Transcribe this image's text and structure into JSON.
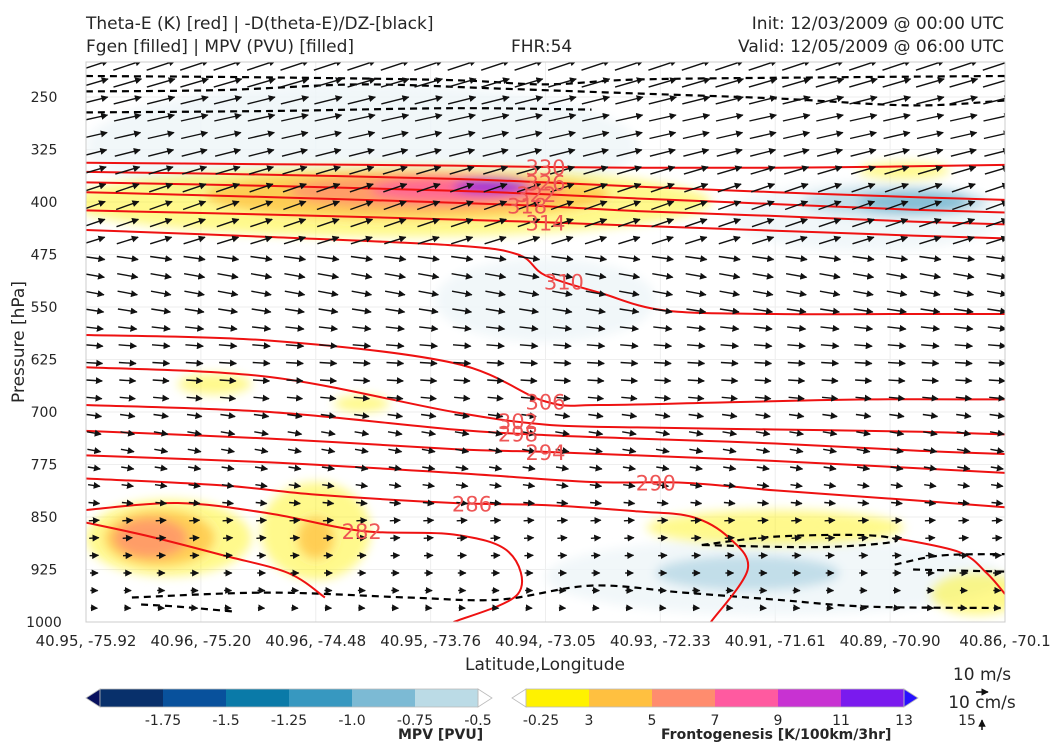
{
  "header": {
    "title_line1": "Theta-E (K) [red] | -D(theta-E)/DZ-[black]",
    "title_line2": "Fgen [filled] | MPV (PVU) [filled]",
    "fhr": "FHR:54",
    "init": "Init: 12/03/2009 @ 00:00 UTC",
    "valid": "Valid: 12/05/2009 @ 06:00 UTC"
  },
  "chart_data": {
    "type": "cross-section",
    "xlabel": "Latitude,Longitude",
    "ylabel": "Pressure [hPa]",
    "ylim": [
      1000,
      200
    ],
    "yticks": [
      250,
      325,
      400,
      475,
      550,
      625,
      700,
      775,
      850,
      925,
      1000
    ],
    "xtick_labels": [
      "40.95, -75.92",
      "40.96, -75.20",
      "40.96, -74.48",
      "40.95, -73.76",
      "40.94, -73.05",
      "40.93, -72.33",
      "40.91, -71.61",
      "40.89, -70.90",
      "40.86, -70.1"
    ],
    "theta_e_contours": [
      {
        "label": "330",
        "points": [
          [
            0.0,
            344
          ],
          [
            0.2,
            346
          ],
          [
            0.4,
            348
          ],
          [
            0.5,
            350
          ],
          [
            0.6,
            351
          ],
          [
            0.75,
            351
          ],
          [
            0.9,
            349
          ],
          [
            1.0,
            347
          ]
        ]
      },
      {
        "label": "326",
        "points": [
          [
            0.0,
            357
          ],
          [
            0.2,
            361
          ],
          [
            0.4,
            367
          ],
          [
            0.5,
            372
          ],
          [
            0.6,
            378
          ],
          [
            0.75,
            386
          ],
          [
            0.9,
            393
          ],
          [
            1.0,
            397
          ]
        ]
      },
      {
        "label": "322",
        "points": [
          [
            0.0,
            372
          ],
          [
            0.2,
            377
          ],
          [
            0.4,
            384
          ],
          [
            0.5,
            389
          ],
          [
            0.6,
            395
          ],
          [
            0.75,
            403
          ],
          [
            0.9,
            411
          ],
          [
            1.0,
            415
          ]
        ]
      },
      {
        "label": "318",
        "points": [
          [
            0.0,
            386
          ],
          [
            0.2,
            393
          ],
          [
            0.4,
            401
          ],
          [
            0.5,
            406
          ],
          [
            0.6,
            413
          ],
          [
            0.75,
            420
          ],
          [
            0.9,
            428
          ],
          [
            1.0,
            432
          ]
        ]
      },
      {
        "label": "314",
        "points": [
          [
            0.0,
            412
          ],
          [
            0.2,
            418
          ],
          [
            0.4,
            425
          ],
          [
            0.5,
            429
          ],
          [
            0.6,
            434
          ],
          [
            0.75,
            441
          ],
          [
            0.9,
            448
          ],
          [
            1.0,
            452
          ]
        ]
      },
      {
        "label": "310",
        "points": [
          [
            0.0,
            440
          ],
          [
            0.2,
            450
          ],
          [
            0.4,
            462
          ],
          [
            0.47,
            475
          ],
          [
            0.5,
            505
          ],
          [
            0.56,
            530
          ],
          [
            0.63,
            555
          ],
          [
            0.75,
            560
          ],
          [
            0.9,
            560
          ],
          [
            1.0,
            560
          ]
        ]
      },
      {
        "label": "306",
        "points": [
          [
            0.0,
            590
          ],
          [
            0.2,
            598
          ],
          [
            0.4,
            630
          ],
          [
            0.5,
            685
          ],
          [
            0.56,
            690
          ],
          [
            0.7,
            686
          ],
          [
            0.85,
            682
          ],
          [
            1.0,
            682
          ]
        ]
      },
      {
        "label": "302",
        "points": [
          [
            0.0,
            636
          ],
          [
            0.2,
            650
          ],
          [
            0.4,
            700
          ],
          [
            0.5,
            718
          ],
          [
            0.6,
            722
          ],
          [
            0.75,
            725
          ],
          [
            0.9,
            728
          ],
          [
            1.0,
            732
          ]
        ]
      },
      {
        "label": "298",
        "points": [
          [
            0.0,
            690
          ],
          [
            0.2,
            700
          ],
          [
            0.4,
            725
          ],
          [
            0.5,
            733
          ],
          [
            0.6,
            738
          ],
          [
            0.75,
            745
          ],
          [
            0.9,
            755
          ],
          [
            1.0,
            760
          ]
        ]
      },
      {
        "label": "294",
        "points": [
          [
            0.0,
            727
          ],
          [
            0.2,
            738
          ],
          [
            0.4,
            753
          ],
          [
            0.5,
            757
          ],
          [
            0.6,
            762
          ],
          [
            0.75,
            770
          ],
          [
            0.9,
            780
          ],
          [
            1.0,
            787
          ]
        ]
      },
      {
        "label": "290",
        "points": [
          [
            0.0,
            762
          ],
          [
            0.2,
            772
          ],
          [
            0.4,
            787
          ],
          [
            0.55,
            800
          ],
          [
            0.65,
            801
          ],
          [
            0.75,
            812
          ],
          [
            0.9,
            826
          ],
          [
            1.0,
            836
          ]
        ]
      },
      {
        "label": "286",
        "points": [
          [
            0.0,
            795
          ],
          [
            0.15,
            805
          ],
          [
            0.25,
            818
          ],
          [
            0.4,
            830
          ],
          [
            0.5,
            833
          ],
          [
            0.6,
            842
          ],
          [
            0.66,
            850
          ],
          [
            0.7,
            880
          ],
          [
            0.72,
            925
          ],
          [
            0.68,
            1000
          ]
        ]
      },
      {
        "label": "282",
        "points": [
          [
            0.0,
            840
          ],
          [
            0.1,
            830
          ],
          [
            0.2,
            845
          ],
          [
            0.3,
            870
          ],
          [
            0.4,
            875
          ],
          [
            0.46,
            900
          ],
          [
            0.47,
            960
          ],
          [
            0.4,
            1000
          ]
        ]
      },
      {
        "label": "",
        "points": [
          [
            0.0,
            858
          ],
          [
            0.07,
            878
          ],
          [
            0.15,
            905
          ],
          [
            0.22,
            930
          ],
          [
            0.26,
            965
          ]
        ]
      },
      {
        "label": "",
        "points": [
          [
            0.88,
            880
          ],
          [
            0.95,
            900
          ],
          [
            0.98,
            930
          ],
          [
            1.0,
            960
          ]
        ]
      }
    ],
    "stability_contours": [
      {
        "points": [
          [
            0.0,
            220
          ],
          [
            0.2,
            222
          ],
          [
            0.4,
            226
          ],
          [
            0.5,
            232
          ],
          [
            0.6,
            225
          ],
          [
            0.8,
            222
          ],
          [
            1.0,
            220
          ]
        ]
      },
      {
        "points": [
          [
            0.0,
            242
          ],
          [
            0.15,
            240
          ],
          [
            0.3,
            232
          ],
          [
            0.45,
            238
          ],
          [
            0.6,
            245
          ],
          [
            0.75,
            252
          ],
          [
            0.9,
            262
          ],
          [
            1.0,
            255
          ]
        ]
      },
      {
        "points": [
          [
            0.0,
            272
          ],
          [
            0.2,
            270
          ],
          [
            0.4,
            266
          ],
          [
            0.55,
            268
          ]
        ]
      },
      {
        "points": [
          [
            0.67,
            890
          ],
          [
            0.75,
            878
          ],
          [
            0.85,
            876
          ],
          [
            0.88,
            885
          ],
          [
            0.8,
            893
          ],
          [
            0.67,
            890
          ]
        ]
      },
      {
        "points": [
          [
            0.88,
            918
          ],
          [
            0.93,
            905
          ],
          [
            1.0,
            903
          ]
        ]
      },
      {
        "points": [
          [
            0.9,
            925
          ],
          [
            1.0,
            928
          ]
        ]
      },
      {
        "points": [
          [
            0.05,
            965
          ],
          [
            0.2,
            958
          ],
          [
            0.35,
            965
          ],
          [
            0.45,
            968
          ],
          [
            0.55,
            948
          ],
          [
            0.65,
            958
          ],
          [
            0.75,
            968
          ],
          [
            0.85,
            978
          ],
          [
            1.0,
            980
          ]
        ]
      },
      {
        "points": [
          [
            0.06,
            975
          ],
          [
            0.1,
            978
          ],
          [
            0.16,
            985
          ]
        ]
      }
    ],
    "fgen_fill": [
      {
        "value": 3,
        "cx": 0.33,
        "cy": 400,
        "rx": 0.35,
        "ry": 50
      },
      {
        "value": 5,
        "cx": 0.35,
        "cy": 390,
        "rx": 0.22,
        "ry": 35
      },
      {
        "value": 7,
        "cx": 0.37,
        "cy": 385,
        "rx": 0.15,
        "ry": 25
      },
      {
        "value": 9,
        "cx": 0.4,
        "cy": 382,
        "rx": 0.09,
        "ry": 18
      },
      {
        "value": 13,
        "cx": 0.44,
        "cy": 378,
        "rx": 0.04,
        "ry": 10
      },
      {
        "value": 3,
        "cx": 0.09,
        "cy": 880,
        "rx": 0.09,
        "ry": 55
      },
      {
        "value": 5,
        "cx": 0.08,
        "cy": 880,
        "rx": 0.06,
        "ry": 40
      },
      {
        "value": 7,
        "cx": 0.07,
        "cy": 880,
        "rx": 0.04,
        "ry": 28
      },
      {
        "value": 3,
        "cx": 0.25,
        "cy": 870,
        "rx": 0.06,
        "ry": 70
      },
      {
        "value": 5,
        "cx": 0.25,
        "cy": 880,
        "rx": 0.02,
        "ry": 30
      },
      {
        "value": 3,
        "cx": 0.14,
        "cy": 660,
        "rx": 0.04,
        "ry": 15
      },
      {
        "value": 3,
        "cx": 0.3,
        "cy": 688,
        "rx": 0.03,
        "ry": 12
      },
      {
        "value": 3,
        "cx": 0.75,
        "cy": 865,
        "rx": 0.14,
        "ry": 25
      },
      {
        "value": 3,
        "cx": 0.97,
        "cy": 960,
        "rx": 0.05,
        "ry": 30
      },
      {
        "value": 3,
        "cx": 0.89,
        "cy": 355,
        "rx": 0.05,
        "ry": 12
      }
    ],
    "mpv_fill": [
      {
        "value": -0.25,
        "cx": 0.3,
        "cy": 320,
        "rx": 0.3,
        "ry": 90
      },
      {
        "value": -0.25,
        "cx": 0.5,
        "cy": 540,
        "rx": 0.12,
        "ry": 60
      },
      {
        "value": -0.25,
        "cx": 0.85,
        "cy": 420,
        "rx": 0.15,
        "ry": 50
      },
      {
        "value": -0.25,
        "cx": 0.75,
        "cy": 935,
        "rx": 0.25,
        "ry": 55
      },
      {
        "value": -0.5,
        "cx": 0.72,
        "cy": 930,
        "rx": 0.1,
        "ry": 25
      },
      {
        "value": -0.5,
        "cx": 0.88,
        "cy": 400,
        "rx": 0.1,
        "ry": 22
      },
      {
        "value": -0.75,
        "cx": 0.9,
        "cy": 400,
        "rx": 0.06,
        "ry": 15
      },
      {
        "value": -1.0,
        "cx": 0.45,
        "cy": 378,
        "rx": 0.03,
        "ry": 8
      },
      {
        "value": -1.5,
        "cx": 0.45,
        "cy": 378,
        "rx": 0.015,
        "ry": 5
      }
    ],
    "wind_vectors": {
      "columns": 28,
      "levels": [
        205,
        230,
        255,
        280,
        305,
        330,
        355,
        380,
        405,
        430,
        455,
        480,
        505,
        530,
        555,
        580,
        605,
        630,
        655,
        680,
        705,
        730,
        755,
        780,
        805,
        830,
        855,
        880,
        905,
        930,
        955,
        980
      ]
    },
    "mpv_colorbar": {
      "label": "MPV [PVU]",
      "colors": [
        "#08105e",
        "#08306b",
        "#08519c",
        "#0a7aa8",
        "#3798c0",
        "#7cbad4",
        "#bbdbe6",
        "#ffffff"
      ],
      "ticks": [
        "-1.75",
        "-1.5",
        "-1.25",
        "-1.0",
        "-0.75",
        "-0.5",
        "-0.25"
      ]
    },
    "fgen_colorbar": {
      "label": "Frontogenesis [K/100km/3hr]",
      "colors": [
        "#ffffff",
        "#fff200",
        "#ffc040",
        "#ff8c6e",
        "#ff5aa0",
        "#c832d2",
        "#7a1aee",
        "#2810ff"
      ],
      "ticks": [
        "3",
        "5",
        "7",
        "9",
        "11",
        "13",
        "15"
      ]
    },
    "vector_key": {
      "label1": "10 m/s",
      "label2": "10 cm/s"
    }
  }
}
